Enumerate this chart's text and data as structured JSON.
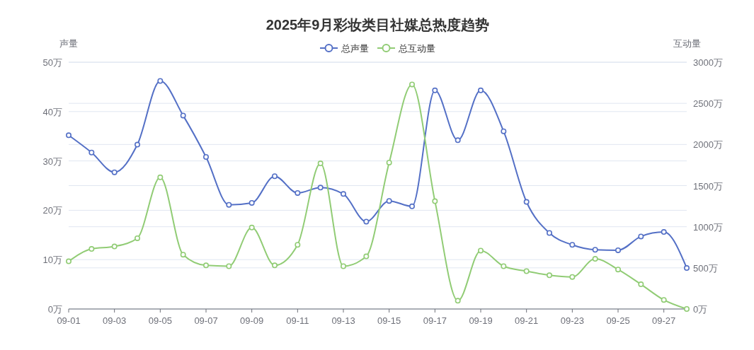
{
  "chart_data": {
    "type": "line",
    "title": "2025年9月彩妆类目社媒总热度趋势",
    "ylabel": "声量",
    "y2label": "互动量",
    "categories": [
      "09-01",
      null,
      "09-03",
      null,
      "09-05",
      null,
      "09-07",
      null,
      "09-09",
      null,
      "09-11",
      null,
      "09-13",
      null,
      "09-15",
      null,
      "09-17",
      null,
      "09-19",
      null,
      "09-21",
      null,
      "09-23",
      null,
      "09-25",
      null,
      "09-27",
      null
    ],
    "series": [
      {
        "name": "总声量",
        "color": "#5470c6",
        "values": [
          35.2,
          31.7,
          27.7,
          33.3,
          46.2,
          39.2,
          30.8,
          21.1,
          21.5,
          26.9,
          23.5,
          24.6,
          23.3,
          17.7,
          21.9,
          20.8,
          44.3,
          34.2,
          44.3,
          36.0,
          21.7,
          15.4,
          13.0,
          12.0,
          11.9,
          14.7,
          15.6,
          8.3
        ]
      },
      {
        "name": "总互动量",
        "color": "#91cc75",
        "axis": "y2",
        "values": [
          580,
          730,
          760,
          860,
          1600,
          660,
          530,
          520,
          990,
          530,
          780,
          1770,
          520,
          640,
          1780,
          2730,
          1310,
          100,
          710,
          520,
          460,
          410,
          390,
          610,
          480,
          300,
          110,
          0
        ]
      }
    ],
    "ylim": [
      0,
      50
    ],
    "yticks": [
      {
        "value": 0,
        "label": "0万"
      },
      {
        "value": 10,
        "label": "10万"
      },
      {
        "value": 20,
        "label": "20万"
      },
      {
        "value": 30,
        "label": "30万"
      },
      {
        "value": 40,
        "label": "40万"
      },
      {
        "value": 50,
        "label": "50万"
      }
    ],
    "y2lim": [
      0,
      3000
    ],
    "y2ticks": [
      {
        "value": 0,
        "label": "0万"
      },
      {
        "value": 500,
        "label": "500万"
      },
      {
        "value": 1000,
        "label": "1000万"
      },
      {
        "value": 1500,
        "label": "1500万"
      },
      {
        "value": 2000,
        "label": "2000万"
      },
      {
        "value": 2500,
        "label": "2500万"
      },
      {
        "value": 3000,
        "label": "3000万"
      }
    ],
    "grid": "y",
    "legend": "top",
    "marker": "circle",
    "line_style": "solid"
  }
}
